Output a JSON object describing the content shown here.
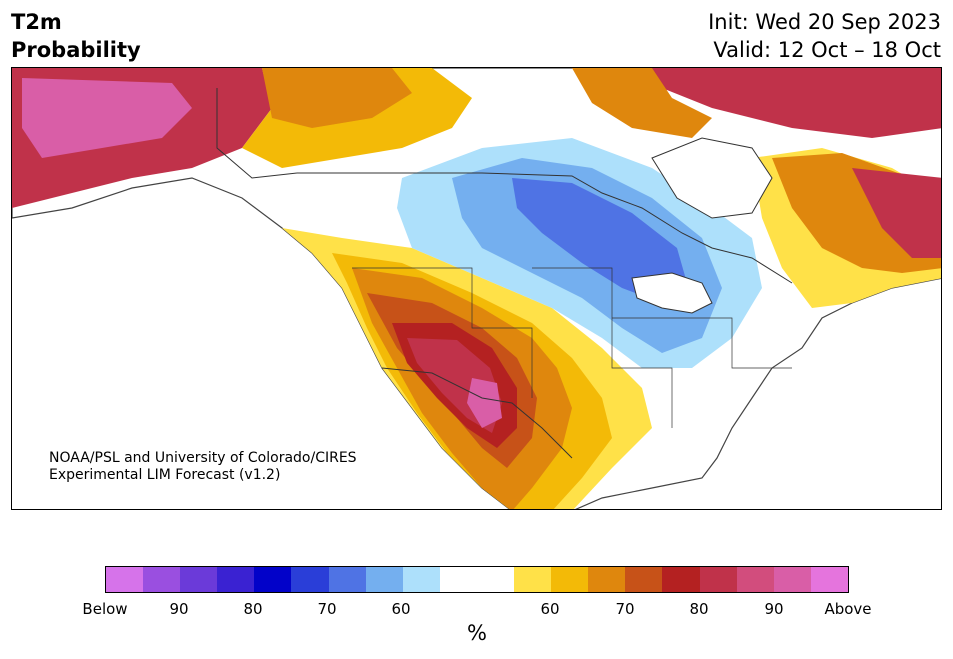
{
  "title": {
    "variable": "T2m",
    "subtitle": "Probability",
    "init": "Init: Wed 20 Sep 2023",
    "valid": "Valid: 12 Oct – 18 Oct"
  },
  "credit": {
    "line1": "NOAA/PSL and University of Colorado/CIRES",
    "line2": "Experimental LIM Forecast (v1.2)"
  },
  "colorbar": {
    "colors": [
      "#d673ea",
      "#9a4fe0",
      "#6b3ad9",
      "#3a22d2",
      "#0202c9",
      "#2a3ed8",
      "#4f73e4",
      "#74afef",
      "#ade0fb",
      "#ffffff",
      "#ffffff",
      "#ffe148",
      "#f3ba07",
      "#df870d",
      "#c75218",
      "#b42121",
      "#c0324a",
      "#d24d7d",
      "#d95ea7",
      "#e574dd"
    ],
    "tick_labels": [
      "Below",
      "90",
      "80",
      "70",
      "60",
      "60",
      "70",
      "80",
      "90",
      "Above"
    ],
    "unit": "%"
  },
  "map": {
    "region": "North America",
    "cold_colors": [
      "#ade0fb",
      "#74afef",
      "#4f73e4"
    ],
    "warm_colors": [
      "#ffe148",
      "#f3ba07",
      "#df870d",
      "#c75218",
      "#b42121",
      "#c0324a",
      "#d95ea7"
    ]
  }
}
